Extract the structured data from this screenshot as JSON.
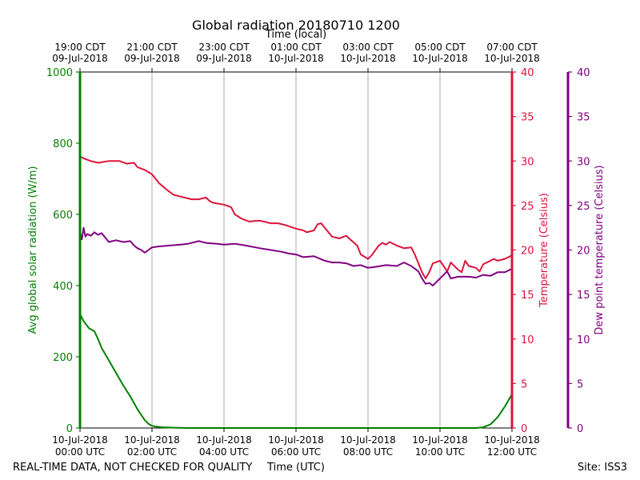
{
  "chart_data": {
    "type": "line",
    "title": "Global radiation 20180710 1200",
    "top_axis_label": "Time (local)",
    "xlabel": "Time (UTC)",
    "footer_left": "REAL-TIME DATA, NOT CHECKED FOR QUALITY",
    "footer_right": "Site: ISS3",
    "x_unit": "hours since 10-Jul-2018 00:00 UTC",
    "xlim": [
      0,
      12
    ],
    "bottom_ticks": [
      {
        "x": 0,
        "line1": "10-Jul-2018",
        "line2": "00:00 UTC"
      },
      {
        "x": 2,
        "line1": "10-Jul-2018",
        "line2": "02:00 UTC"
      },
      {
        "x": 4,
        "line1": "10-Jul-2018",
        "line2": "04:00 UTC"
      },
      {
        "x": 6,
        "line1": "10-Jul-2018",
        "line2": "06:00 UTC"
      },
      {
        "x": 8,
        "line1": "10-Jul-2018",
        "line2": "08:00 UTC"
      },
      {
        "x": 10,
        "line1": "10-Jul-2018",
        "line2": "10:00 UTC"
      },
      {
        "x": 12,
        "line1": "10-Jul-2018",
        "line2": "12:00 UTC"
      }
    ],
    "top_ticks": [
      {
        "x": 0,
        "line1": "19:00 CDT",
        "line2": "09-Jul-2018"
      },
      {
        "x": 2,
        "line1": "21:00 CDT",
        "line2": "09-Jul-2018"
      },
      {
        "x": 4,
        "line1": "23:00 CDT",
        "line2": "09-Jul-2018"
      },
      {
        "x": 6,
        "line1": "01:00 CDT",
        "line2": "10-Jul-2018"
      },
      {
        "x": 8,
        "line1": "03:00 CDT",
        "line2": "10-Jul-2018"
      },
      {
        "x": 10,
        "line1": "05:00 CDT",
        "line2": "10-Jul-2018"
      },
      {
        "x": 12,
        "line1": "07:00 CDT",
        "line2": "10-Jul-2018"
      }
    ],
    "axes": [
      {
        "id": "radiation",
        "label": "Avg global solar radiation (W/m)",
        "color": "#008000",
        "ylim": [
          0,
          1000
        ],
        "ticks": [
          0,
          200,
          400,
          600,
          800,
          1000
        ]
      },
      {
        "id": "temperature",
        "label": "Temperature (Celsius)",
        "color": "#dc143c",
        "ylim": [
          0,
          40
        ],
        "ticks": [
          0,
          5,
          10,
          15,
          20,
          25,
          30,
          35,
          40
        ]
      },
      {
        "id": "dewpoint",
        "label": "Dew point temperature (Celsius)",
        "color": "#800080",
        "ylim": [
          0,
          40
        ],
        "ticks": [
          0,
          5,
          10,
          15,
          20,
          25,
          30,
          35,
          40
        ]
      }
    ],
    "series": [
      {
        "name": "Avg global solar radiation",
        "axis": "radiation",
        "color": "#008000",
        "x": [
          0,
          0.1,
          0.25,
          0.4,
          0.5,
          0.6,
          0.8,
          1.0,
          1.2,
          1.4,
          1.6,
          1.8,
          1.9,
          2.0,
          2.1,
          2.3,
          2.6,
          3.0,
          4.0,
          6.0,
          8.0,
          10.0,
          11.0,
          11.2,
          11.4,
          11.6,
          11.8,
          12.0
        ],
        "values": [
          320,
          300,
          280,
          272,
          250,
          225,
          190,
          155,
          120,
          88,
          52,
          22,
          12,
          6,
          4,
          2,
          1,
          0,
          0,
          0,
          0,
          0,
          0,
          2,
          10,
          30,
          60,
          95
        ]
      },
      {
        "name": "Temperature",
        "axis": "temperature",
        "color": "#dc143c",
        "x": [
          0,
          0.1,
          0.3,
          0.5,
          0.8,
          1.1,
          1.3,
          1.5,
          1.6,
          1.8,
          2.0,
          2.2,
          2.4,
          2.6,
          2.8,
          3.1,
          3.3,
          3.5,
          3.6,
          3.7,
          4.0,
          4.2,
          4.3,
          4.5,
          4.7,
          5.0,
          5.3,
          5.5,
          5.7,
          6.0,
          6.2,
          6.3,
          6.5,
          6.6,
          6.7,
          6.8,
          7.0,
          7.2,
          7.4,
          7.5,
          7.7,
          7.8,
          8.0,
          8.1,
          8.3,
          8.4,
          8.5,
          8.6,
          8.8,
          9.0,
          9.2,
          9.3,
          9.5,
          9.6,
          9.7,
          9.8,
          10.0,
          10.1,
          10.2,
          10.3,
          10.5,
          10.6,
          10.7,
          10.8,
          11.0,
          11.1,
          11.2,
          11.3,
          11.5,
          11.6,
          11.8,
          12.0
        ],
        "values": [
          30.5,
          30.3,
          30.0,
          29.8,
          30.0,
          30.0,
          29.7,
          29.8,
          29.3,
          29.0,
          28.5,
          27.5,
          26.8,
          26.2,
          26.0,
          25.7,
          25.7,
          25.9,
          25.5,
          25.3,
          25.1,
          24.8,
          24.0,
          23.5,
          23.2,
          23.3,
          23.0,
          23.0,
          22.8,
          22.4,
          22.2,
          22.0,
          22.2,
          22.9,
          23.0,
          22.5,
          21.5,
          21.3,
          21.6,
          21.2,
          20.5,
          19.5,
          19.0,
          19.4,
          20.5,
          20.8,
          20.6,
          20.9,
          20.5,
          20.2,
          20.3,
          19.5,
          17.5,
          16.8,
          17.5,
          18.5,
          18.8,
          18.2,
          17.6,
          18.6,
          17.8,
          17.5,
          18.8,
          18.2,
          18.0,
          17.6,
          18.4,
          18.6,
          19.0,
          18.8,
          19.0,
          19.4
        ]
      },
      {
        "name": "Dew point temperature",
        "axis": "dewpoint",
        "color": "#800080",
        "x": [
          0,
          0.05,
          0.1,
          0.15,
          0.2,
          0.3,
          0.4,
          0.5,
          0.6,
          0.7,
          0.8,
          0.9,
          1.0,
          1.2,
          1.4,
          1.5,
          1.6,
          1.7,
          1.8,
          1.9,
          2.0,
          2.2,
          2.5,
          2.8,
          3.0,
          3.3,
          3.5,
          3.8,
          4.0,
          4.3,
          4.6,
          5.0,
          5.3,
          5.6,
          5.8,
          6.0,
          6.2,
          6.5,
          6.8,
          7.0,
          7.2,
          7.4,
          7.6,
          7.8,
          8.0,
          8.2,
          8.5,
          8.8,
          9.0,
          9.2,
          9.4,
          9.5,
          9.6,
          9.7,
          9.8,
          10.0,
          10.2,
          10.3,
          10.5,
          10.6,
          10.8,
          11.0,
          11.2,
          11.4,
          11.6,
          11.8,
          12.0
        ],
        "values": [
          22.0,
          21.2,
          22.5,
          21.5,
          21.8,
          21.6,
          22.0,
          21.7,
          21.9,
          21.4,
          20.9,
          21.0,
          21.1,
          20.9,
          21.0,
          20.5,
          20.2,
          20.0,
          19.7,
          20.0,
          20.3,
          20.4,
          20.5,
          20.6,
          20.7,
          21.0,
          20.8,
          20.7,
          20.6,
          20.7,
          20.5,
          20.2,
          20.0,
          19.8,
          19.6,
          19.5,
          19.2,
          19.3,
          18.8,
          18.6,
          18.6,
          18.5,
          18.2,
          18.3,
          18.0,
          18.1,
          18.3,
          18.2,
          18.6,
          18.2,
          17.6,
          16.8,
          16.2,
          16.3,
          16.0,
          16.8,
          17.6,
          16.8,
          17.0,
          17.0,
          17.0,
          16.9,
          17.2,
          17.1,
          17.5,
          17.5,
          17.9
        ]
      }
    ]
  }
}
